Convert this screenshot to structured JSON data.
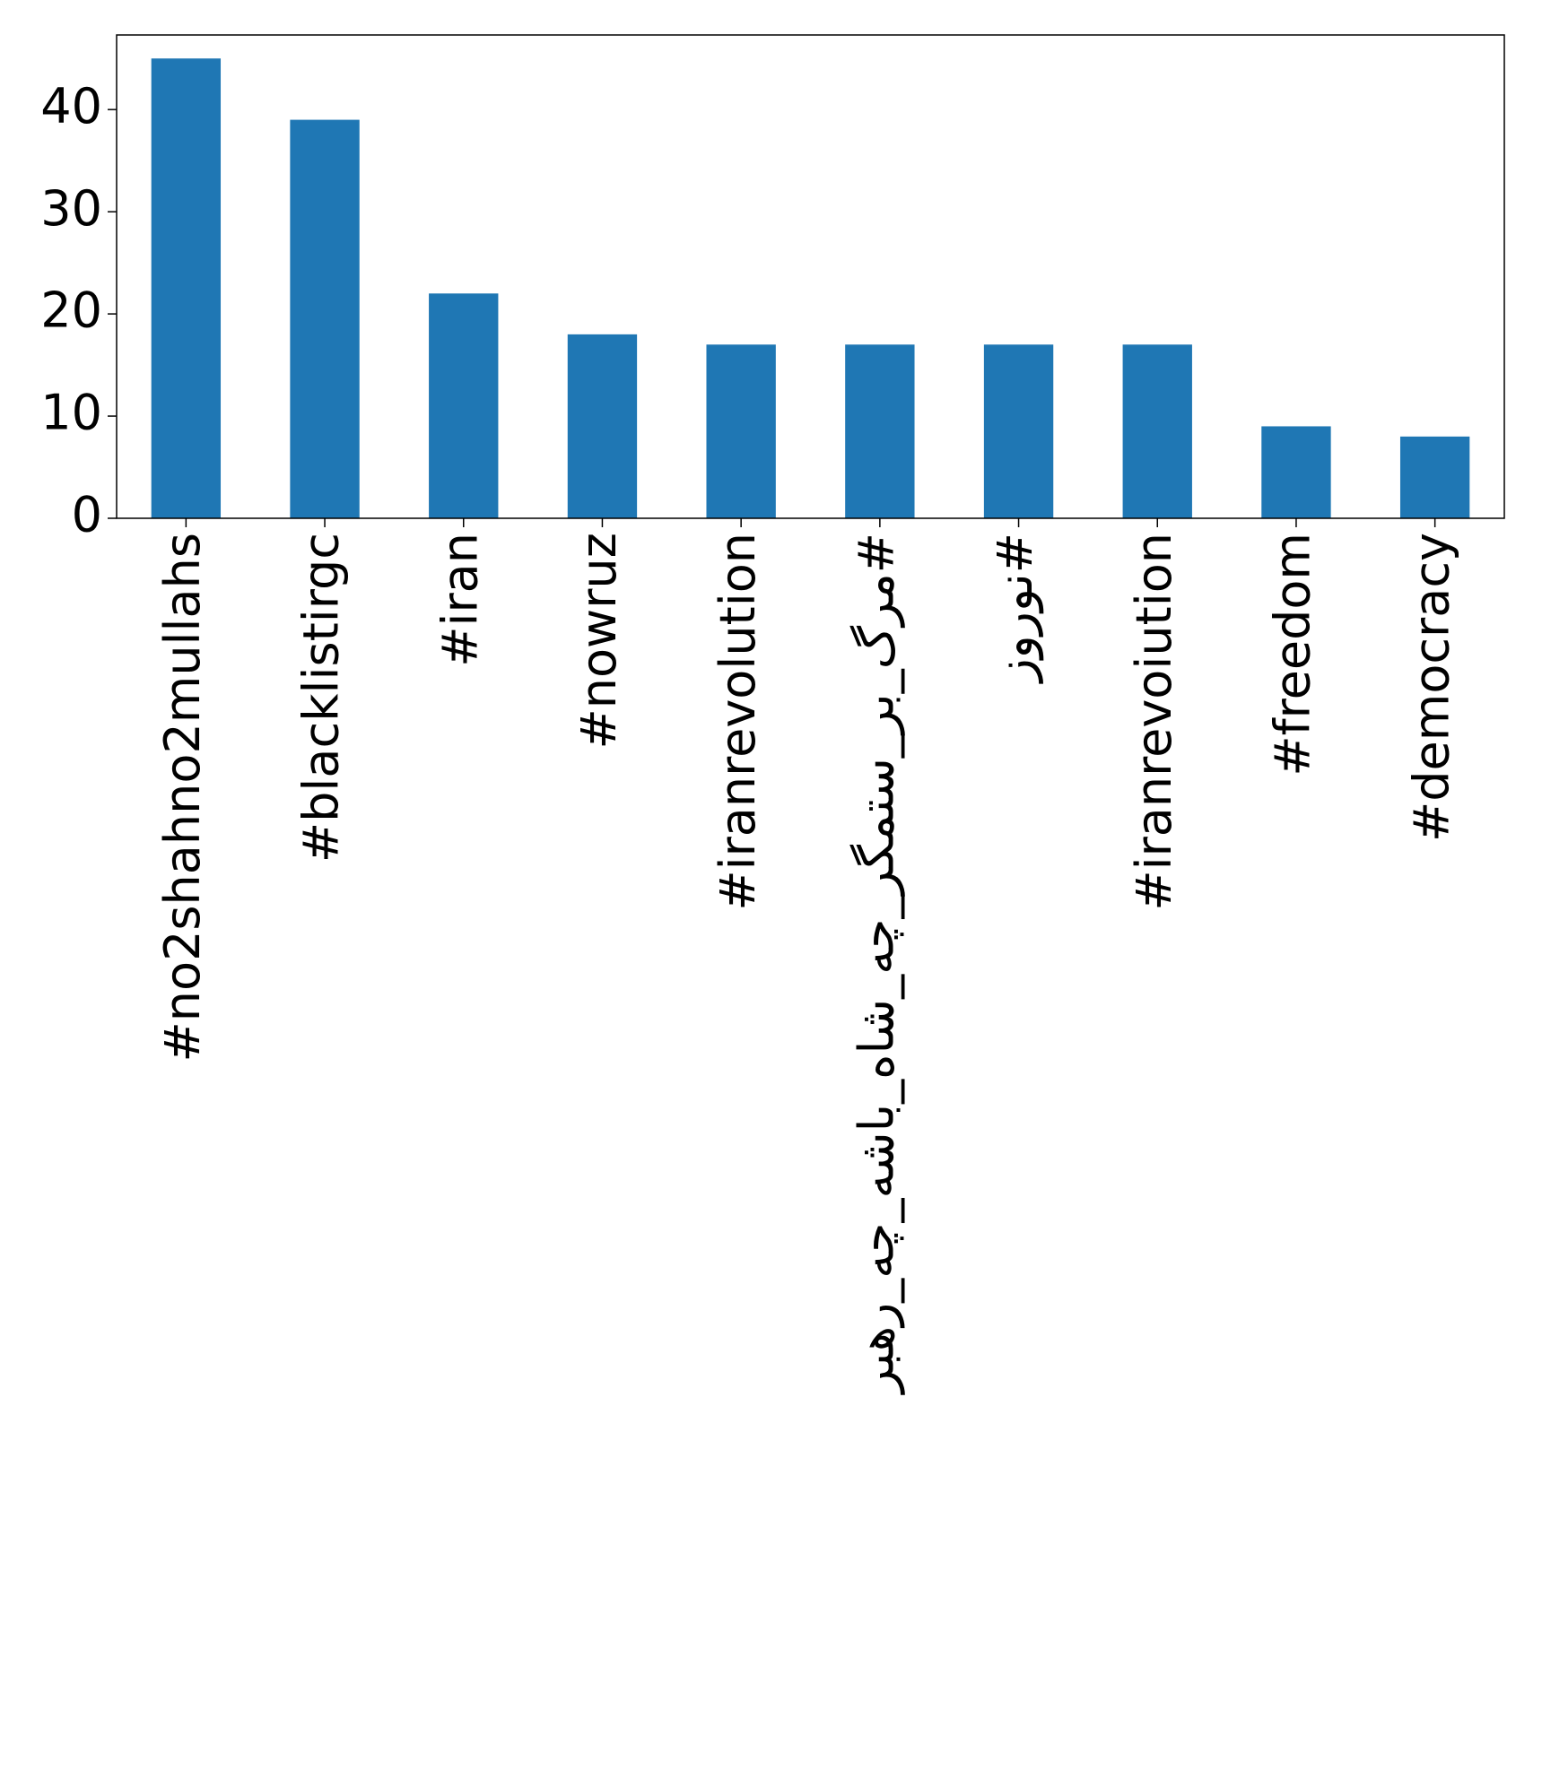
{
  "chart_data": {
    "type": "bar",
    "categories": [
      "#no2shahno2mullahs",
      "#blacklistirgc",
      "#iran",
      "#nowruz",
      "#iranrevolution",
      "#مرگ_بر_ستمگر_چه_شاه_باشه_چه_رهبر",
      "#نوروز",
      "#iranrevoiution",
      "#freedom",
      "#democracy"
    ],
    "values": [
      45,
      39,
      22,
      18,
      17,
      17,
      17,
      17,
      9,
      8
    ],
    "color": "#1f77b4",
    "ylim": [
      0,
      47.3
    ],
    "yticks": [
      0,
      10,
      20,
      30,
      40
    ],
    "grid": false
  }
}
